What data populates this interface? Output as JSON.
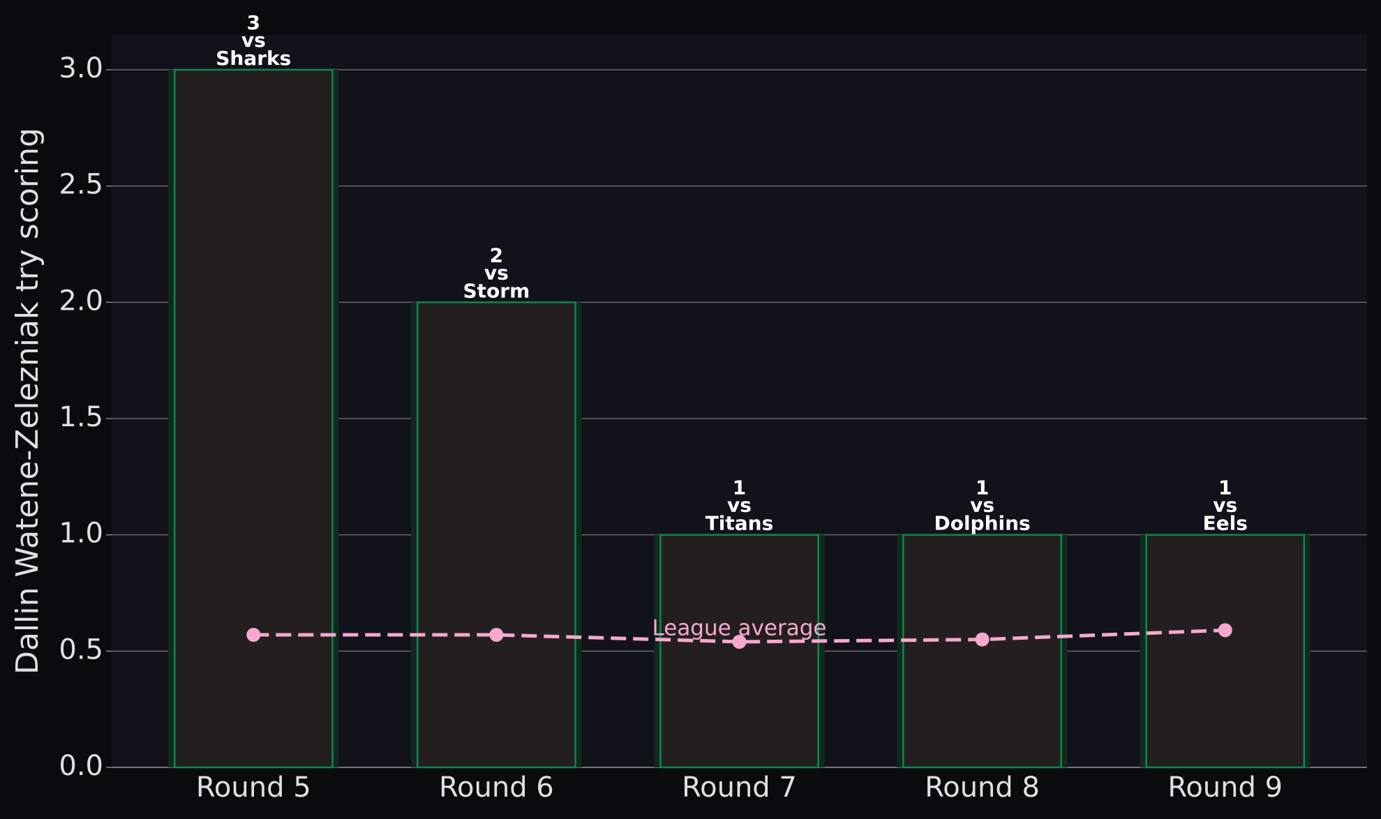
{
  "chart_data": {
    "type": "bar",
    "y_label": "Dallin Watene-Zelezniak try scoring",
    "categories": [
      "Round 5",
      "Round 6",
      "Round 7",
      "Round 8",
      "Round 9"
    ],
    "series": [
      {
        "name": "Dallin Watene-Zelezniak",
        "type": "bar",
        "color": "#231f20",
        "edge_color": "#12874d",
        "values": [
          3,
          2,
          1,
          1,
          1
        ]
      },
      {
        "name": "League average",
        "type": "line",
        "color": "#f7a8cf",
        "dashed": true,
        "values": [
          0.57,
          0.57,
          0.54,
          0.55,
          0.59
        ]
      }
    ],
    "opponents": [
      "Sharks",
      "Storm",
      "Titans",
      "Dolphins",
      "Eels"
    ],
    "label_connector": "vs",
    "ylim": [
      0,
      3.15
    ],
    "yticks": [
      {
        "value": 0,
        "label": "0.0"
      },
      {
        "value": 0.5,
        "label": "0.5"
      },
      {
        "value": 1,
        "label": "1.0"
      },
      {
        "value": 1.5,
        "label": "1.5"
      },
      {
        "value": 2,
        "label": "2.0"
      },
      {
        "value": 2.5,
        "label": "2.5"
      },
      {
        "value": 3,
        "label": "3.0"
      }
    ],
    "grid": true
  }
}
